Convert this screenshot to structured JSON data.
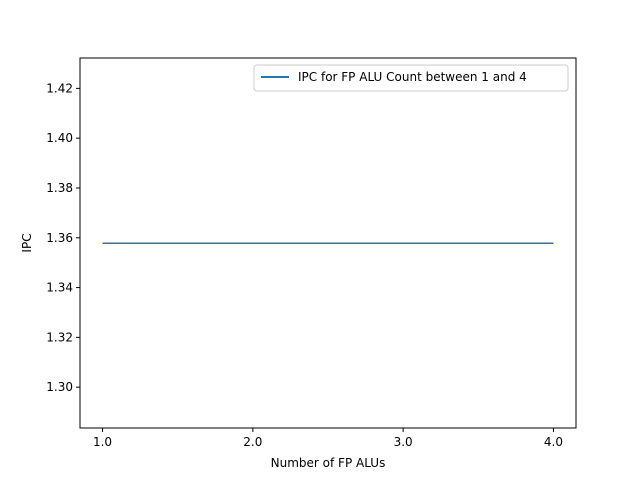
{
  "chart_data": {
    "type": "line",
    "title": "",
    "xlabel": "Number of FP ALUs",
    "ylabel": "IPC",
    "xlim": [
      0.85,
      4.15
    ],
    "ylim": [
      1.2836,
      1.4322
    ],
    "xticks": [
      1.0,
      2.0,
      3.0,
      4.0
    ],
    "xtick_labels": [
      "1.0",
      "2.0",
      "3.0",
      "4.0"
    ],
    "yticks": [
      1.3,
      1.32,
      1.34,
      1.36,
      1.38,
      1.4,
      1.42
    ],
    "ytick_labels": [
      "1.30",
      "1.32",
      "1.34",
      "1.36",
      "1.38",
      "1.40",
      "1.42"
    ],
    "grid": false,
    "legend_position": "top-right",
    "series": [
      {
        "name": "IPC for FP ALU Count between 1 and 4",
        "color": "#1f77b4",
        "x": [
          1.0,
          2.0,
          3.0,
          4.0
        ],
        "y": [
          1.3578,
          1.3578,
          1.3578,
          1.3578
        ]
      }
    ]
  }
}
